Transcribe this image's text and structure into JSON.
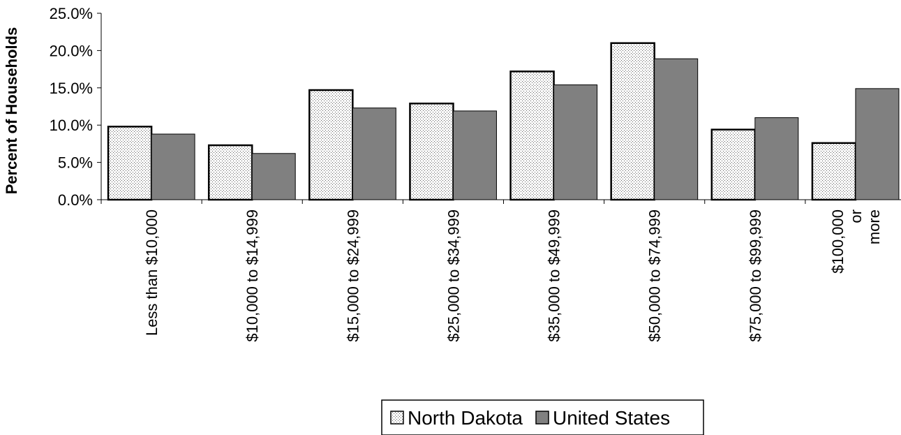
{
  "chart_data": {
    "type": "bar",
    "title": "",
    "xlabel": "",
    "ylabel": "Percent of Households",
    "ylim": [
      0,
      25
    ],
    "yticks": [
      "0.0%",
      "5.0%",
      "10.0%",
      "15.0%",
      "20.0%",
      "25.0%"
    ],
    "categories": [
      [
        "Less than $10,000"
      ],
      [
        "$10,000 to $14,999"
      ],
      [
        "$15,000 to $24,999"
      ],
      [
        "$25,000 to $34,999"
      ],
      [
        "$35,000 to $49,999"
      ],
      [
        "$50,000 to $74,999"
      ],
      [
        "$75,000 to $99,999"
      ],
      [
        "$100,000",
        "or",
        "more"
      ]
    ],
    "series": [
      {
        "name": "North Dakota",
        "color": "#ffffff",
        "pattern": "dotted",
        "values": [
          9.8,
          7.3,
          14.7,
          12.9,
          17.2,
          21.0,
          9.4,
          7.6
        ]
      },
      {
        "name": "United States",
        "color": "#808080",
        "pattern": "solid",
        "values": [
          8.8,
          6.2,
          12.3,
          11.9,
          15.4,
          18.9,
          11.0,
          14.9
        ]
      }
    ],
    "legend_position": "bottom",
    "grid": false
  }
}
